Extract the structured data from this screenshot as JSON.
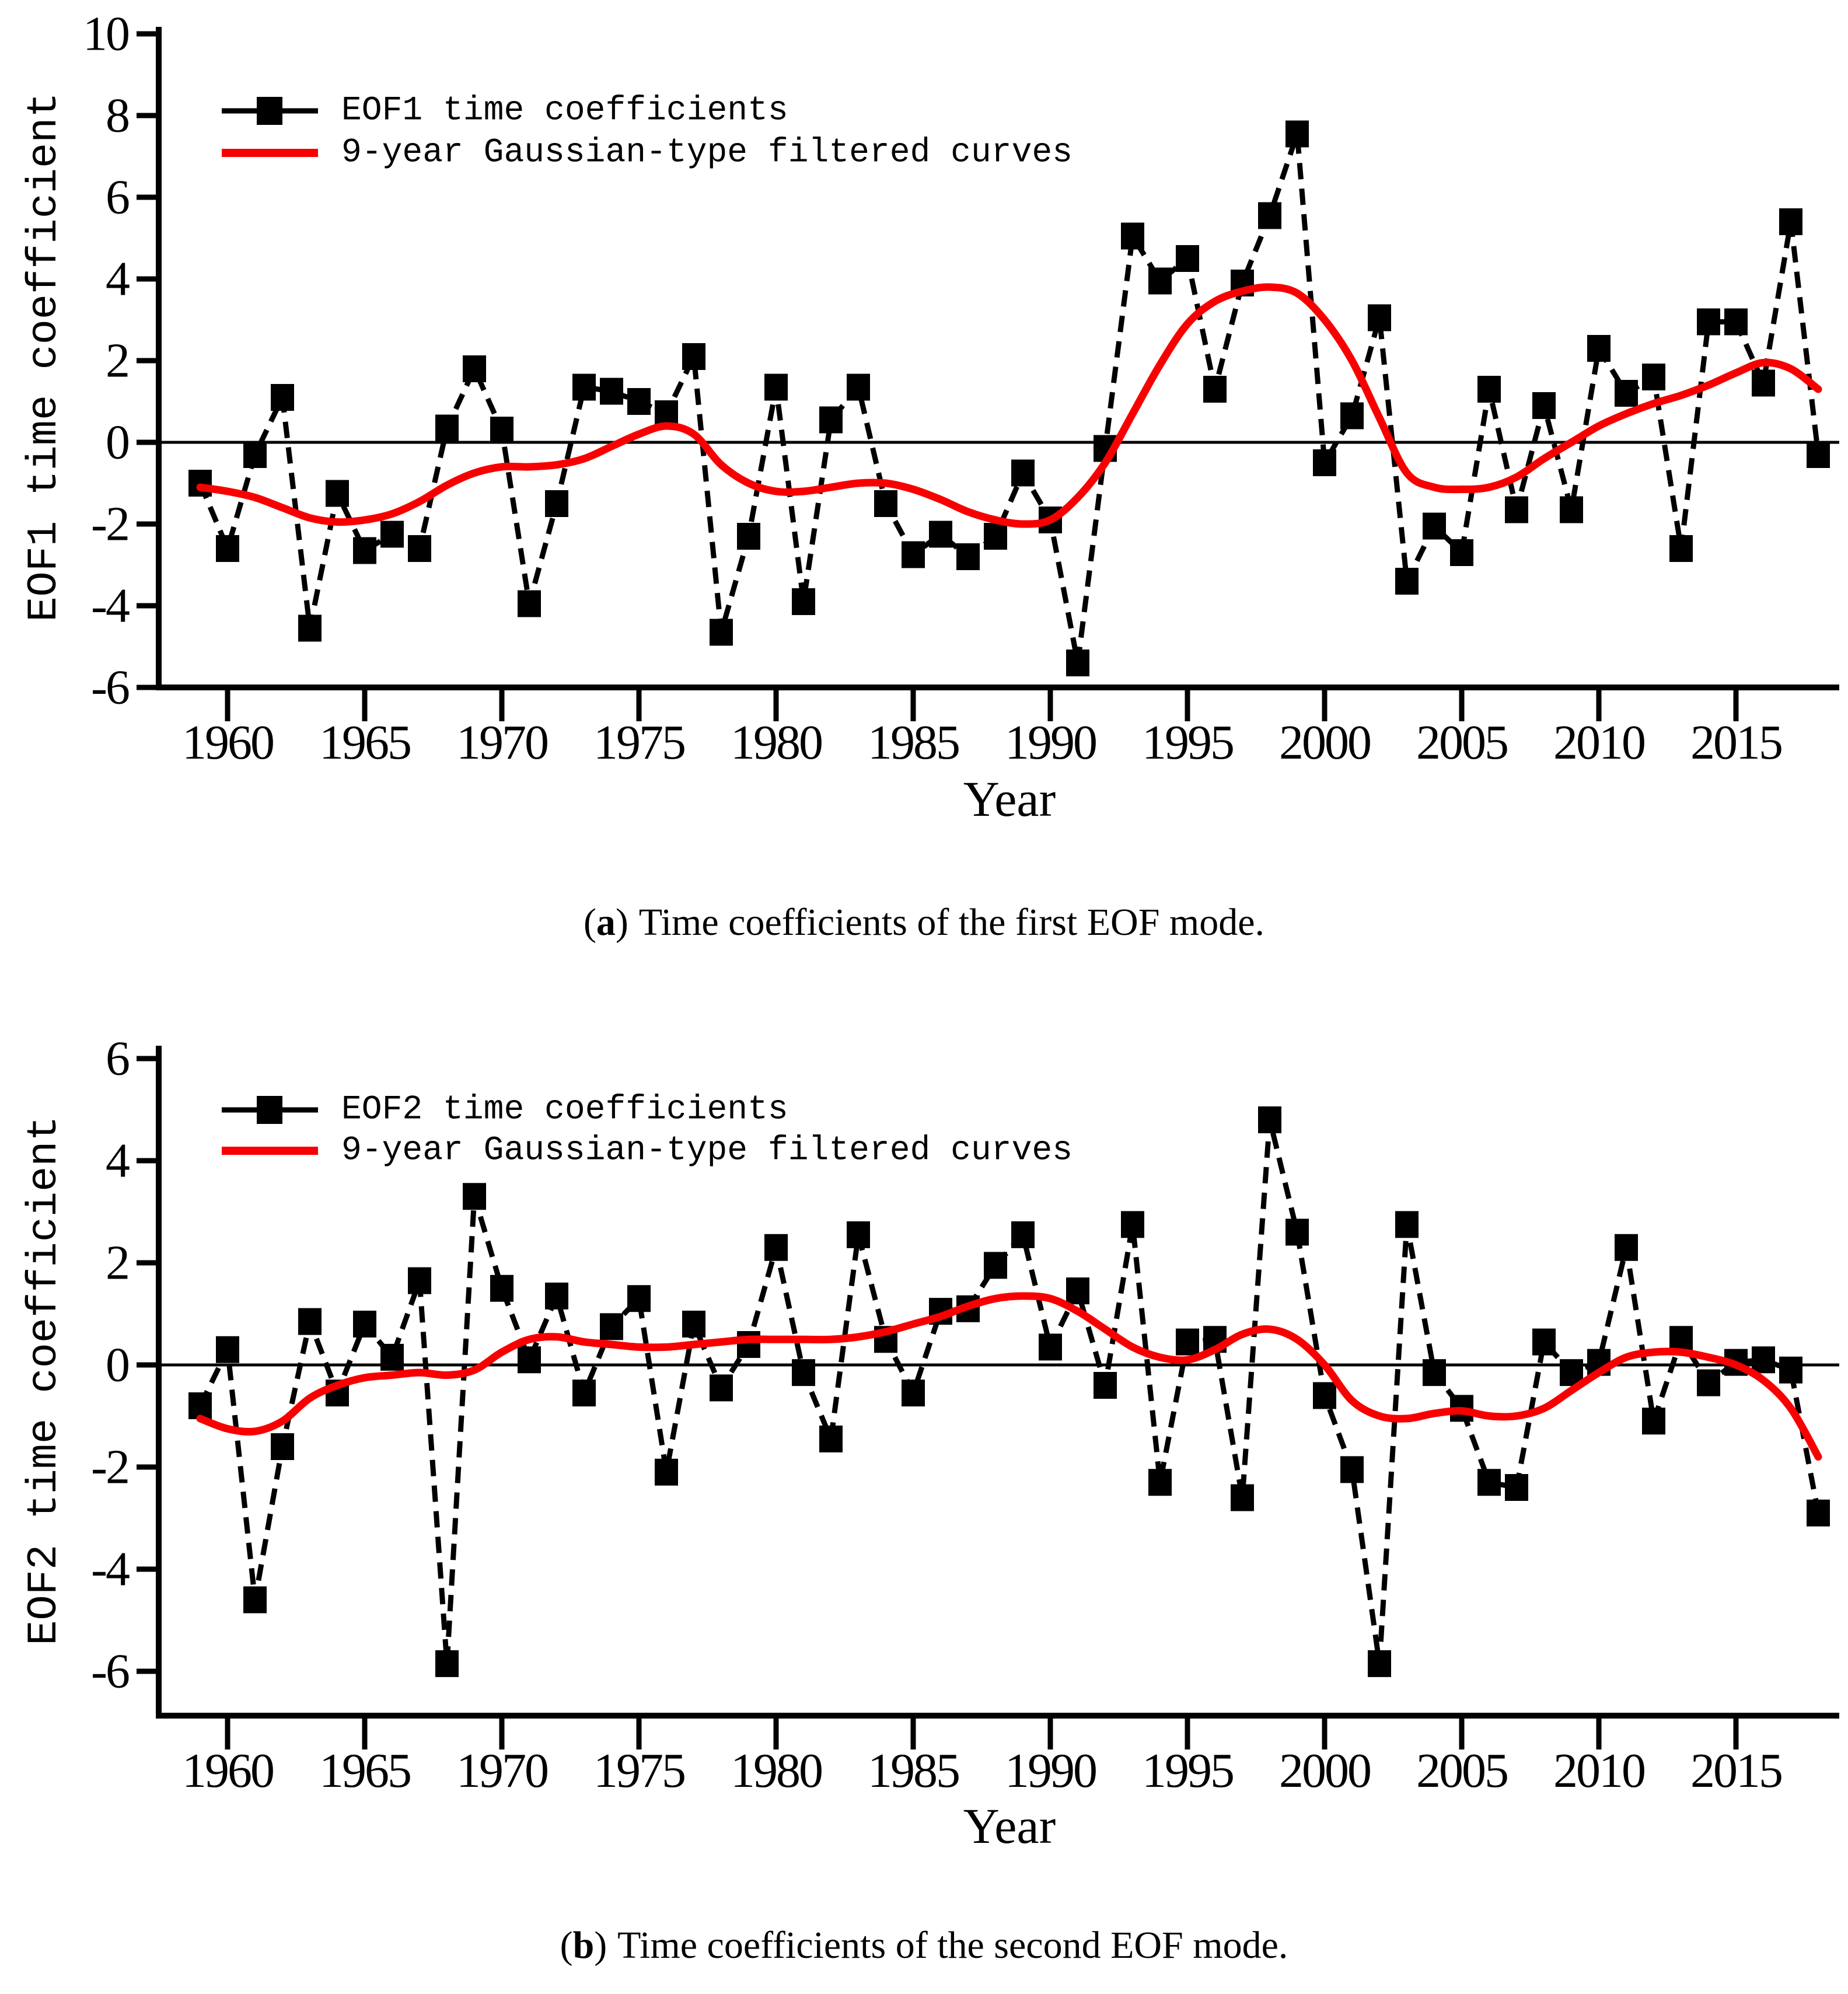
{
  "figure": {
    "background": "#ffffff",
    "series_color": "#000000",
    "filtered_color": "#f80000"
  },
  "chart_data": [
    {
      "type": "line",
      "panel": "a",
      "cap_open": "(",
      "cap_letter": "a",
      "cap_close": ")",
      "caption_text": "Time coefficients of the first EOF mode.",
      "xlabel": "Year",
      "ylabel": "EOF1 time coefficient",
      "ylim": [
        -6,
        10
      ],
      "yticks": [
        10,
        8,
        6,
        4,
        2,
        0,
        -2,
        -4,
        -6
      ],
      "xticks": [
        1960,
        1965,
        1970,
        1975,
        1980,
        1985,
        1990,
        1995,
        2000,
        2005,
        2010,
        2015
      ],
      "legend_position": "top-left",
      "grid": false,
      "x": [
        1959,
        1960,
        1961,
        1962,
        1963,
        1964,
        1965,
        1966,
        1967,
        1968,
        1969,
        1970,
        1971,
        1972,
        1973,
        1974,
        1975,
        1976,
        1977,
        1978,
        1979,
        1980,
        1981,
        1982,
        1983,
        1984,
        1985,
        1986,
        1987,
        1988,
        1989,
        1990,
        1991,
        1992,
        1993,
        1994,
        1995,
        1996,
        1997,
        1998,
        1999,
        2000,
        2001,
        2002,
        2003,
        2004,
        2005,
        2006,
        2007,
        2008,
        2009,
        2010,
        2011,
        2012,
        2013,
        2014,
        2015,
        2016,
        2017,
        2018
      ],
      "series": [
        {
          "name": "EOF1 time coefficients",
          "style": "dashed-line-square-marker",
          "color": "#000000",
          "values": [
            -1.0,
            -2.6,
            -0.3,
            1.1,
            -4.55,
            -1.25,
            -2.65,
            -2.25,
            -2.6,
            0.35,
            1.8,
            0.3,
            -3.95,
            -1.5,
            1.35,
            1.25,
            1.0,
            0.7,
            2.1,
            -4.65,
            -2.3,
            1.35,
            -3.9,
            0.55,
            1.35,
            -1.5,
            -2.75,
            -2.25,
            -2.8,
            -2.3,
            -0.75,
            -1.9,
            -5.4,
            -0.15,
            5.05,
            3.95,
            4.5,
            1.3,
            3.9,
            5.55,
            7.55,
            -0.5,
            0.65,
            3.05,
            -3.4,
            -2.05,
            -2.7,
            1.3,
            -1.65,
            0.9,
            -1.65,
            2.3,
            1.2,
            1.6,
            -2.6,
            2.95,
            2.95,
            1.45,
            5.4,
            -0.3
          ]
        },
        {
          "name": "9-year Gaussian-type filtered curves",
          "style": "smooth-line",
          "color": "#f80000",
          "values": [
            -1.1,
            -1.2,
            -1.35,
            -1.6,
            -1.85,
            -1.95,
            -1.9,
            -1.75,
            -1.45,
            -1.05,
            -0.75,
            -0.6,
            -0.6,
            -0.55,
            -0.4,
            -0.1,
            0.2,
            0.4,
            0.2,
            -0.55,
            -1.0,
            -1.2,
            -1.2,
            -1.1,
            -1.0,
            -1.0,
            -1.15,
            -1.4,
            -1.7,
            -1.9,
            -2.0,
            -1.9,
            -1.35,
            -0.5,
            0.7,
            1.9,
            2.9,
            3.45,
            3.7,
            3.8,
            3.65,
            3.0,
            2.0,
            0.6,
            -0.75,
            -1.1,
            -1.15,
            -1.1,
            -0.85,
            -0.4,
            0.0,
            0.4,
            0.7,
            0.95,
            1.15,
            1.4,
            1.7,
            1.95,
            1.8,
            1.3
          ]
        }
      ]
    },
    {
      "type": "line",
      "panel": "b",
      "cap_open": "(",
      "cap_letter": "b",
      "cap_close": ")",
      "caption_text": "Time coefficients of the second EOF mode.",
      "xlabel": "Year",
      "ylabel": "EOF2 time coefficient",
      "ylim": [
        -6,
        6
      ],
      "yticks": [
        6,
        4,
        2,
        0,
        -2,
        -4,
        -6
      ],
      "xticks": [
        1960,
        1965,
        1970,
        1975,
        1980,
        1985,
        1990,
        1995,
        2000,
        2005,
        2010,
        2015
      ],
      "legend_position": "top-left",
      "grid": false,
      "x": [
        1959,
        1960,
        1961,
        1962,
        1963,
        1964,
        1965,
        1966,
        1967,
        1968,
        1969,
        1970,
        1971,
        1972,
        1973,
        1974,
        1975,
        1976,
        1977,
        1978,
        1979,
        1980,
        1981,
        1982,
        1983,
        1984,
        1985,
        1986,
        1987,
        1988,
        1989,
        1990,
        1991,
        1992,
        1993,
        1994,
        1995,
        1996,
        1997,
        1998,
        1999,
        2000,
        2001,
        2002,
        2003,
        2004,
        2005,
        2006,
        2007,
        2008,
        2009,
        2010,
        2011,
        2012,
        2013,
        2014,
        2015,
        2016,
        2017,
        2018
      ],
      "series": [
        {
          "name": "EOF2 time coefficients",
          "style": "dashed-line-square-marker",
          "color": "#000000",
          "values": [
            -0.8,
            0.3,
            -4.6,
            -1.6,
            0.85,
            -0.55,
            0.8,
            0.15,
            1.65,
            -5.85,
            3.3,
            1.5,
            0.1,
            1.35,
            -0.55,
            0.75,
            1.3,
            -2.1,
            0.8,
            -0.45,
            0.4,
            2.3,
            -0.15,
            -1.45,
            2.55,
            0.5,
            -0.55,
            1.05,
            1.1,
            1.95,
            2.55,
            0.35,
            1.45,
            -0.4,
            2.75,
            -2.3,
            0.45,
            0.5,
            -2.6,
            4.8,
            2.6,
            -0.6,
            -2.05,
            -5.85,
            2.75,
            -0.15,
            -0.85,
            -2.3,
            -2.4,
            0.45,
            -0.15,
            0.05,
            2.3,
            -1.1,
            0.5,
            -0.35,
            0.05,
            0.1,
            -0.1,
            -2.9
          ]
        },
        {
          "name": "9-year Gaussian-type filtered curves",
          "style": "smooth-line",
          "color": "#f80000",
          "values": [
            -1.05,
            -1.25,
            -1.3,
            -1.1,
            -0.65,
            -0.4,
            -0.25,
            -0.2,
            -0.15,
            -0.2,
            -0.1,
            0.25,
            0.5,
            0.55,
            0.45,
            0.4,
            0.35,
            0.35,
            0.4,
            0.45,
            0.5,
            0.5,
            0.5,
            0.5,
            0.55,
            0.65,
            0.8,
            0.95,
            1.15,
            1.3,
            1.35,
            1.3,
            1.05,
            0.7,
            0.35,
            0.15,
            0.1,
            0.3,
            0.6,
            0.7,
            0.5,
            0.0,
            -0.7,
            -1.0,
            -1.05,
            -0.95,
            -0.9,
            -1.0,
            -1.0,
            -0.85,
            -0.5,
            -0.15,
            0.15,
            0.25,
            0.25,
            0.15,
            0.0,
            -0.3,
            -0.85,
            -1.8
          ]
        }
      ]
    }
  ]
}
